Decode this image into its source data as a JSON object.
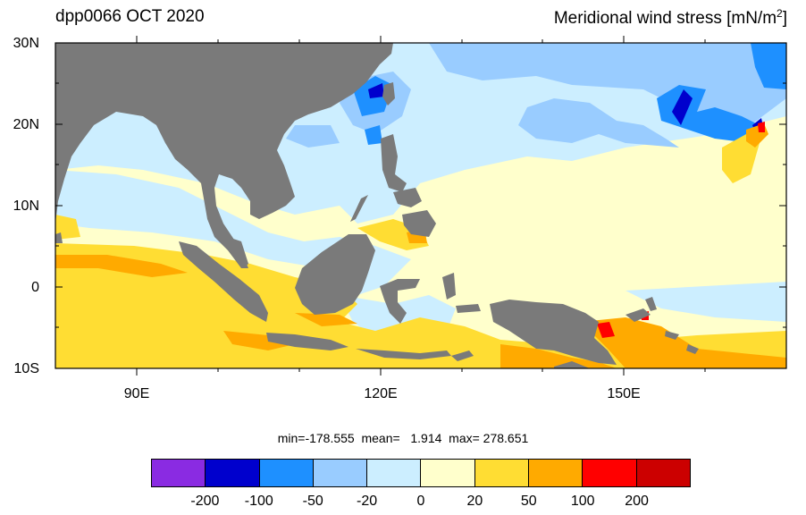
{
  "title_left": "dpp0066 OCT 2020",
  "title_right_main": "Meridional wind stress [mN/m",
  "title_right_sup": "2",
  "title_right_end": "]",
  "lat_labels": [
    "30N",
    "20N",
    "10N",
    "0",
    "10S"
  ],
  "lon_labels": [
    "90E",
    "120E",
    "150E"
  ],
  "stats": "min=-178.555  mean=   1.914  max= 278.651",
  "colorbar": {
    "colors": [
      "#8a2be2",
      "#0000cd",
      "#1e90ff",
      "#99ccff",
      "#cceeff",
      "#ffffcc",
      "#ffdd33",
      "#ffaa00",
      "#ff0000",
      "#cc0000"
    ],
    "labels": [
      "-200",
      "-100",
      "-50",
      "-20",
      "0",
      "20",
      "50",
      "100",
      "200"
    ]
  },
  "map_colors": {
    "land": "#7a7a7a",
    "ocean_base": "#ffffcc"
  }
}
